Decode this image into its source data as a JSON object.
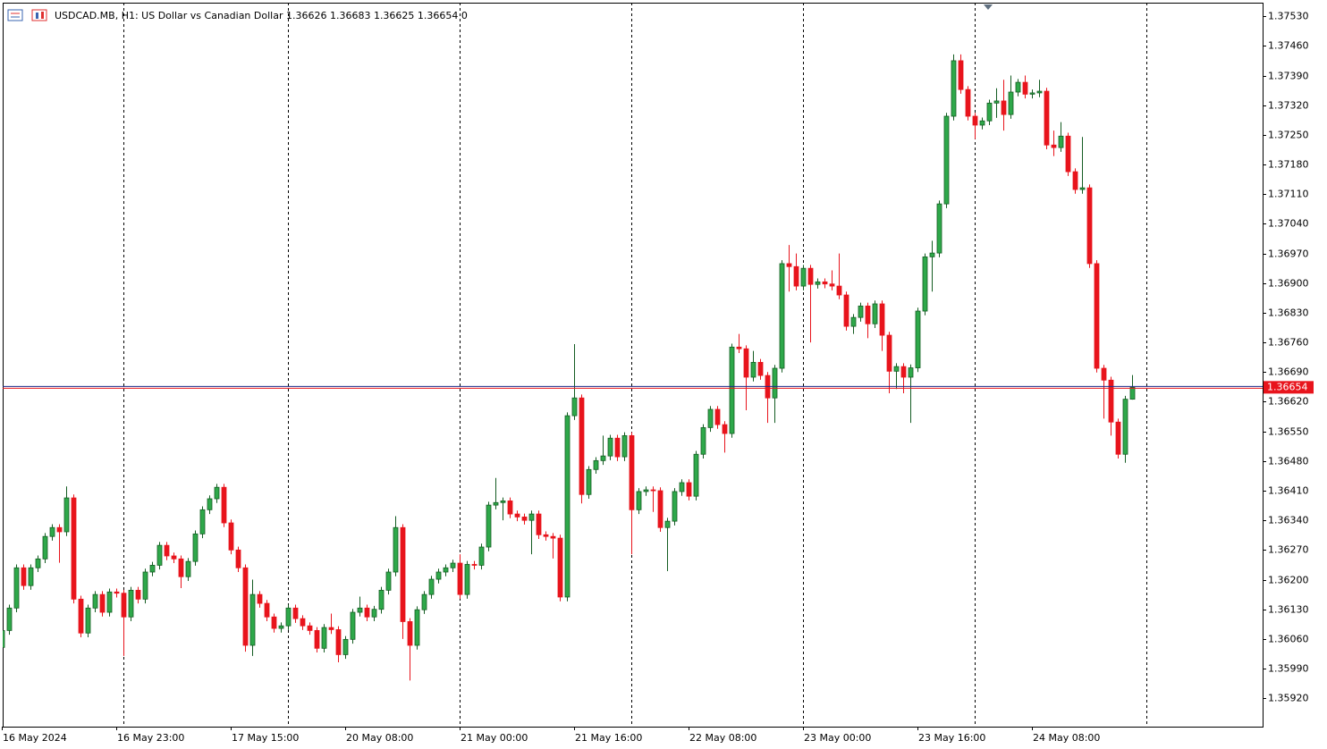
{
  "chart_data": {
    "type": "candlestick",
    "title": "USDCAD.MB, H1:  US Dollar vs Canadian Dollar  1.36626 1.36683 1.36625 1.36654  0",
    "categories": [
      "16 May 2024",
      null,
      null,
      null,
      null,
      null,
      null,
      null,
      null,
      null,
      null,
      null,
      null,
      null,
      null,
      null,
      "16 May 23:00",
      null,
      null,
      null,
      null,
      null,
      null,
      null,
      null,
      null,
      null,
      null,
      null,
      null,
      null,
      null,
      "17 May 15:00",
      null,
      null,
      null,
      null,
      null,
      null,
      null,
      null,
      null,
      null,
      null,
      null,
      null,
      null,
      null,
      "20 May 08:00",
      null,
      null,
      null,
      null,
      null,
      null,
      null,
      null,
      null,
      null,
      null,
      null,
      null,
      null,
      null,
      "21 May 00:00",
      null,
      null,
      null,
      null,
      null,
      null,
      null,
      null,
      null,
      null,
      null,
      null,
      null,
      null,
      null,
      "21 May 16:00",
      null,
      null,
      null,
      null,
      null,
      null,
      null,
      null,
      null,
      null,
      null,
      null,
      null,
      null,
      null,
      "22 May 08:00",
      null,
      null,
      null,
      null,
      null,
      null,
      null,
      null,
      null,
      null,
      null,
      null,
      null,
      null,
      null,
      "23 May 00:00",
      null,
      null,
      null,
      null,
      null,
      null,
      null,
      null,
      null,
      null,
      null,
      null,
      null,
      null,
      null,
      "23 May 16:00",
      null,
      null,
      null,
      null,
      null,
      null,
      null,
      null,
      null,
      null,
      null,
      null,
      null,
      null,
      null,
      "24 May 08:00",
      null,
      null,
      null,
      null,
      null,
      null,
      null,
      null,
      null,
      null,
      null,
      null,
      null,
      null
    ],
    "open": [
      1.3604,
      1.3608,
      1.36133,
      1.36228,
      1.36186,
      1.36228,
      1.36249,
      1.36302,
      1.36323,
      1.36313,
      1.36393,
      1.36154,
      1.36074,
      1.36133,
      1.36165,
      1.36123,
      1.36171,
      1.36168,
      1.36112,
      1.36175,
      1.36154,
      1.36218,
      1.36234,
      1.36281,
      1.36256,
      1.36249,
      1.36207,
      1.36243,
      1.36308,
      1.36365,
      1.36391,
      1.36418,
      1.36334,
      1.3627,
      1.36228,
      1.36045,
      1.36165,
      1.36144,
      1.36112,
      1.36085,
      1.36091,
      1.36133,
      1.36108,
      1.36091,
      1.3608,
      1.36038,
      1.36087,
      1.36082,
      1.36023,
      1.36059,
      1.36123,
      1.36133,
      1.36112,
      1.3613,
      1.36175,
      1.36218,
      1.36323,
      1.36101,
      1.36045,
      1.36129,
      1.36165,
      1.36201,
      1.36218,
      1.36228,
      1.36239,
      1.36165,
      1.36236,
      1.36234,
      1.36277,
      1.36376,
      1.36382,
      1.36386,
      1.36355,
      1.36348,
      1.3634,
      1.36355,
      1.36306,
      1.36302,
      1.36298,
      1.36159,
      1.36587,
      1.36629,
      1.36401,
      1.3646,
      1.36481,
      1.36492,
      1.36534,
      1.3649,
      1.3654,
      1.36365,
      1.36408,
      1.36412,
      1.3641,
      1.36323,
      1.36338,
      1.36408,
      1.36429,
      1.36397,
      1.36496,
      1.36559,
      1.36602,
      1.36566,
      1.36545,
      1.36749,
      1.36745,
      1.36678,
      1.36713,
      1.36682,
      1.36629,
      1.36699,
      1.36946,
      1.36939,
      1.36893,
      1.36935,
      1.36897,
      1.36903,
      1.36898,
      1.36893,
      1.36872,
      1.36798,
      1.36819,
      1.36846,
      1.36804,
      1.36851,
      1.36777,
      1.36692,
      1.36703,
      1.36678,
      1.367,
      1.36834,
      1.36962,
      1.36971,
      1.37087,
      1.37294,
      1.37425,
      1.37357,
      1.37294,
      1.37273,
      1.37283,
      1.37325,
      1.3733,
      1.37298,
      1.37351,
      1.37374,
      1.37346,
      1.37349,
      1.37353,
      1.37226,
      1.3722,
      1.37247,
      1.37163,
      1.37121,
      1.37125,
      1.36946,
      1.36699,
      1.36671,
      1.36572,
      1.36496,
      1.36626
    ],
    "high": [
      1.36088,
      1.36141,
      1.36236,
      1.36236,
      1.36236,
      1.36257,
      1.3631,
      1.36331,
      1.36331,
      1.3642,
      1.36401,
      1.36162,
      1.36141,
      1.36173,
      1.36173,
      1.36179,
      1.36179,
      1.36176,
      1.36183,
      1.36183,
      1.36226,
      1.36242,
      1.36289,
      1.36289,
      1.36264,
      1.36257,
      1.36251,
      1.36316,
      1.36373,
      1.36399,
      1.36426,
      1.36426,
      1.36342,
      1.36278,
      1.36236,
      1.362,
      1.36173,
      1.36152,
      1.3612,
      1.36099,
      1.36141,
      1.36141,
      1.36116,
      1.36099,
      1.36088,
      1.36095,
      1.3612,
      1.3609,
      1.36067,
      1.36131,
      1.3616,
      1.36141,
      1.36138,
      1.36183,
      1.36226,
      1.3635,
      1.36331,
      1.36109,
      1.36137,
      1.36173,
      1.36209,
      1.36226,
      1.36236,
      1.36247,
      1.3626,
      1.36244,
      1.36244,
      1.36285,
      1.36384,
      1.3644,
      1.36394,
      1.36394,
      1.36363,
      1.36356,
      1.36363,
      1.36363,
      1.36314,
      1.3631,
      1.36306,
      1.36595,
      1.36756,
      1.36637,
      1.36468,
      1.36489,
      1.3654,
      1.36542,
      1.36542,
      1.36548,
      1.36548,
      1.36416,
      1.3642,
      1.3642,
      1.36418,
      1.36346,
      1.36416,
      1.36437,
      1.36437,
      1.36504,
      1.36567,
      1.3661,
      1.3661,
      1.36574,
      1.36757,
      1.3678,
      1.36753,
      1.3674,
      1.36721,
      1.3669,
      1.36707,
      1.36954,
      1.3699,
      1.3697,
      1.36943,
      1.36943,
      1.36911,
      1.36911,
      1.3693,
      1.3697,
      1.3688,
      1.36827,
      1.36854,
      1.36854,
      1.36859,
      1.36859,
      1.36785,
      1.36711,
      1.36711,
      1.36708,
      1.36842,
      1.3697,
      1.37,
      1.37095,
      1.37302,
      1.3744,
      1.3744,
      1.37365,
      1.37302,
      1.37291,
      1.37333,
      1.3736,
      1.3738,
      1.3739,
      1.37382,
      1.3739,
      1.37357,
      1.3738,
      1.37361,
      1.3726,
      1.3728,
      1.37255,
      1.37171,
      1.37245,
      1.37133,
      1.36954,
      1.36707,
      1.36679,
      1.3658,
      1.36634,
      1.36683
    ],
    "low": [
      1.3602,
      1.3607,
      1.36123,
      1.36176,
      1.36176,
      1.36218,
      1.36239,
      1.36292,
      1.3624,
      1.36303,
      1.36144,
      1.36064,
      1.36064,
      1.36123,
      1.36113,
      1.36113,
      1.36158,
      1.3602,
      1.36102,
      1.36144,
      1.36144,
      1.36208,
      1.36224,
      1.36246,
      1.36239,
      1.3618,
      1.36197,
      1.36233,
      1.36298,
      1.36355,
      1.36381,
      1.36324,
      1.3626,
      1.36218,
      1.3603,
      1.3602,
      1.36134,
      1.36102,
      1.36075,
      1.36075,
      1.36081,
      1.36098,
      1.36081,
      1.3607,
      1.36028,
      1.36028,
      1.36072,
      1.36005,
      1.36013,
      1.36049,
      1.36113,
      1.36102,
      1.36102,
      1.3612,
      1.36165,
      1.36208,
      1.3606,
      1.35962,
      1.36035,
      1.36119,
      1.36155,
      1.36191,
      1.36208,
      1.36218,
      1.36155,
      1.36155,
      1.36224,
      1.36224,
      1.36267,
      1.36366,
      1.3634,
      1.36345,
      1.36338,
      1.3633,
      1.3626,
      1.36296,
      1.36292,
      1.3625,
      1.36149,
      1.36149,
      1.36577,
      1.3638,
      1.36391,
      1.3645,
      1.36471,
      1.36482,
      1.3648,
      1.3648,
      1.3626,
      1.36355,
      1.36398,
      1.3636,
      1.36313,
      1.3622,
      1.36328,
      1.36398,
      1.36387,
      1.36387,
      1.36486,
      1.36549,
      1.36556,
      1.365,
      1.36535,
      1.36735,
      1.366,
      1.36668,
      1.36672,
      1.3657,
      1.3657,
      1.36689,
      1.3688,
      1.36883,
      1.36883,
      1.3676,
      1.36887,
      1.36888,
      1.36883,
      1.36862,
      1.36788,
      1.3678,
      1.36809,
      1.3677,
      1.36794,
      1.3674,
      1.3664,
      1.3665,
      1.3664,
      1.3657,
      1.3669,
      1.36824,
      1.3688,
      1.36961,
      1.37077,
      1.37284,
      1.37347,
      1.37284,
      1.3724,
      1.37263,
      1.37273,
      1.3729,
      1.3726,
      1.37288,
      1.37341,
      1.37336,
      1.37336,
      1.37339,
      1.37216,
      1.372,
      1.3721,
      1.37153,
      1.37111,
      1.37111,
      1.36936,
      1.36689,
      1.3658,
      1.3654,
      1.36486,
      1.36476,
      1.36625
    ],
    "close": [
      1.3608,
      1.36133,
      1.36228,
      1.36186,
      1.36228,
      1.36249,
      1.36302,
      1.36323,
      1.36313,
      1.36393,
      1.36154,
      1.36074,
      1.36133,
      1.36165,
      1.36123,
      1.36171,
      1.36168,
      1.36112,
      1.36175,
      1.36154,
      1.36218,
      1.36234,
      1.36281,
      1.36256,
      1.36249,
      1.36207,
      1.36243,
      1.36308,
      1.36365,
      1.36391,
      1.36418,
      1.36334,
      1.3627,
      1.36228,
      1.36045,
      1.36165,
      1.36144,
      1.36112,
      1.36085,
      1.36091,
      1.36133,
      1.36108,
      1.36091,
      1.3608,
      1.36038,
      1.36087,
      1.36082,
      1.36023,
      1.36059,
      1.36123,
      1.36133,
      1.36112,
      1.3613,
      1.36175,
      1.36218,
      1.36323,
      1.36101,
      1.36045,
      1.36129,
      1.36165,
      1.36201,
      1.36218,
      1.36228,
      1.36239,
      1.36165,
      1.36236,
      1.36234,
      1.36277,
      1.36376,
      1.36382,
      1.36386,
      1.36355,
      1.36348,
      1.3634,
      1.36355,
      1.36306,
      1.36302,
      1.36298,
      1.36159,
      1.36587,
      1.36629,
      1.36401,
      1.3646,
      1.36481,
      1.36492,
      1.36534,
      1.3649,
      1.3654,
      1.36365,
      1.36408,
      1.36412,
      1.3641,
      1.36323,
      1.36338,
      1.36408,
      1.36429,
      1.36397,
      1.36496,
      1.36559,
      1.36602,
      1.36566,
      1.36545,
      1.36749,
      1.36745,
      1.36678,
      1.36713,
      1.36682,
      1.36629,
      1.36699,
      1.36946,
      1.36939,
      1.36893,
      1.36935,
      1.36897,
      1.36903,
      1.36898,
      1.36893,
      1.36872,
      1.36798,
      1.36819,
      1.36846,
      1.36804,
      1.36851,
      1.36777,
      1.36692,
      1.36703,
      1.36678,
      1.367,
      1.36834,
      1.36962,
      1.36971,
      1.37087,
      1.37294,
      1.37425,
      1.37357,
      1.37294,
      1.37273,
      1.37283,
      1.37325,
      1.3733,
      1.37298,
      1.37351,
      1.37374,
      1.37346,
      1.37349,
      1.37353,
      1.37226,
      1.3722,
      1.37247,
      1.37163,
      1.37121,
      1.37125,
      1.36946,
      1.36699,
      1.36671,
      1.36572,
      1.36496,
      1.36626,
      1.36654
    ],
    "up_color": "#2ea84a",
    "up_outline": "#145c22",
    "down_color": "#e8141c",
    "ylim": [
      1.35853,
      1.37562
    ],
    "yticks": [
      {
        "value": 1.3592,
        "label": "1.35920"
      },
      {
        "value": 1.3599,
        "label": "1.35990"
      },
      {
        "value": 1.3606,
        "label": "1.36060"
      },
      {
        "value": 1.3613,
        "label": "1.36130"
      },
      {
        "value": 1.362,
        "label": "1.36200"
      },
      {
        "value": 1.3627,
        "label": "1.36270"
      },
      {
        "value": 1.3634,
        "label": "1.36340"
      },
      {
        "value": 1.3641,
        "label": "1.36410"
      },
      {
        "value": 1.3648,
        "label": "1.36480"
      },
      {
        "value": 1.3655,
        "label": "1.36550"
      },
      {
        "value": 1.3662,
        "label": "1.36620"
      },
      {
        "value": 1.3669,
        "label": "1.36690"
      },
      {
        "value": 1.3676,
        "label": "1.36760"
      },
      {
        "value": 1.3683,
        "label": "1.36830"
      },
      {
        "value": 1.369,
        "label": "1.36900"
      },
      {
        "value": 1.3697,
        "label": "1.36970"
      },
      {
        "value": 1.3704,
        "label": "1.37040"
      },
      {
        "value": 1.3711,
        "label": "1.37110"
      },
      {
        "value": 1.3718,
        "label": "1.37180"
      },
      {
        "value": 1.3725,
        "label": "1.37250"
      },
      {
        "value": 1.3732,
        "label": "1.37320"
      },
      {
        "value": 1.3739,
        "label": "1.37390"
      },
      {
        "value": 1.3746,
        "label": "1.37460"
      },
      {
        "value": 1.3753,
        "label": "1.37530"
      }
    ],
    "last_price": 1.36654,
    "last_price_color": "#e8141c",
    "bid_line_color": "#1c2a8a"
  }
}
